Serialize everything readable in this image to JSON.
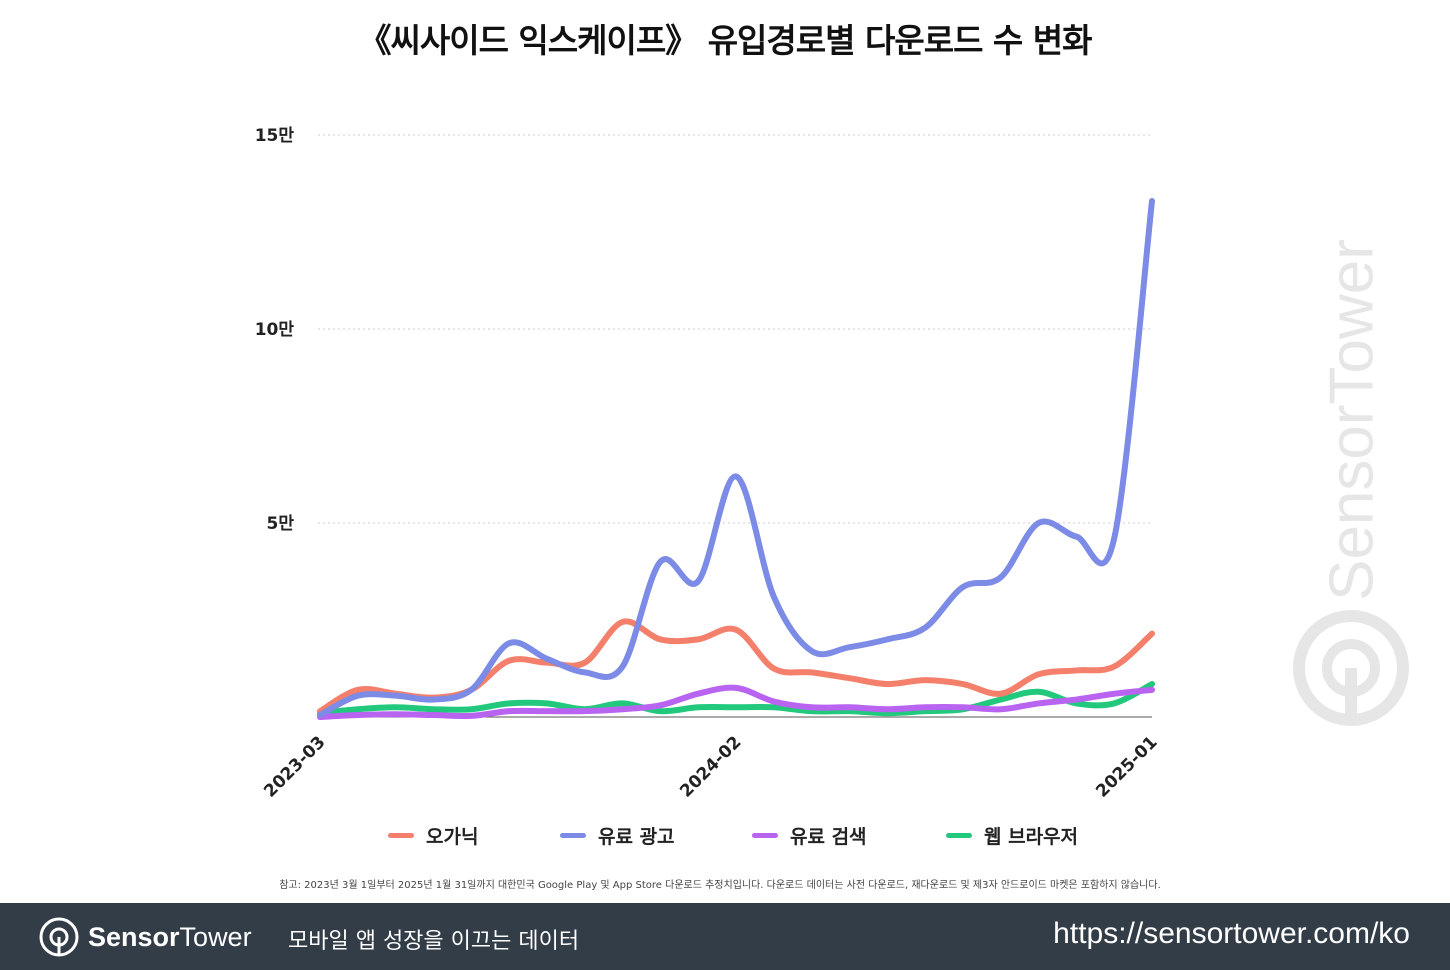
{
  "chart_data": {
    "type": "line",
    "title": "《씨사이드 익스케이프》 유입경로별 다운로드 수 변화",
    "x": [
      "2023-03",
      "2023-04",
      "2023-05",
      "2023-06",
      "2023-07",
      "2023-08",
      "2023-09",
      "2023-10",
      "2023-11",
      "2023-12",
      "2024-01",
      "2024-02",
      "2024-03",
      "2024-04",
      "2024-05",
      "2024-06",
      "2024-07",
      "2024-08",
      "2024-09",
      "2024-10",
      "2024-11",
      "2024-12",
      "2025-01"
    ],
    "x_tick_labels": [
      "2023-03",
      "2024-02",
      "2025-01"
    ],
    "y_tick_labels": [
      "5만",
      "10만",
      "15만"
    ],
    "ylim": [
      0,
      150000
    ],
    "y_ticks": [
      50000,
      100000,
      150000
    ],
    "grid": true,
    "series": [
      {
        "name": "오가닉",
        "color": "#f4806c",
        "values": [
          1500,
          7000,
          6000,
          5000,
          7000,
          14500,
          14000,
          14000,
          24500,
          20000,
          20000,
          22500,
          12500,
          11500,
          10000,
          8500,
          9500,
          8500,
          6000,
          11000,
          12000,
          13000,
          21500
        ]
      },
      {
        "name": "유료 광고",
        "color": "#7b8be6",
        "values": [
          500,
          5500,
          5500,
          4500,
          7000,
          19000,
          15000,
          11500,
          13000,
          40000,
          35000,
          62000,
          31000,
          17000,
          18000,
          20000,
          23000,
          33500,
          36000,
          50000,
          46500,
          46000,
          133000
        ]
      },
      {
        "name": "유료 검색",
        "color": "#b864f1",
        "values": [
          0,
          500,
          700,
          500,
          300,
          1500,
          1500,
          1500,
          2000,
          3000,
          6000,
          7500,
          4000,
          2500,
          2500,
          2000,
          2500,
          2500,
          2000,
          3500,
          4500,
          6000,
          7000
        ]
      },
      {
        "name": "웹 브라우저",
        "color": "#22c97c",
        "values": [
          1000,
          2000,
          2500,
          2000,
          2000,
          3500,
          3500,
          2000,
          3500,
          1500,
          2500,
          2500,
          2500,
          1500,
          1500,
          1000,
          1500,
          2000,
          4500,
          6500,
          3500,
          3500,
          8500
        ]
      }
    ]
  },
  "footnote": "참고: 2023년 3월 1일부터 2025년 1월 31일까지 대한민국 Google Play 및 App Store 다운로드 추정치입니다. 다운로드 데이터는 사전 다운로드, 재다운로드 및 제3자 안드로이드 마켓은 포함하지 않습니다.",
  "watermark": "SensorTower",
  "footer": {
    "brand_bold": "Sensor",
    "brand_light": "Tower",
    "tagline": "모바일 앱 성장을 이끄는 데이터",
    "url": "https://sensortower.com/ko"
  },
  "colors": {
    "footer_bg": "#333d47",
    "grid": "#cccccc"
  }
}
